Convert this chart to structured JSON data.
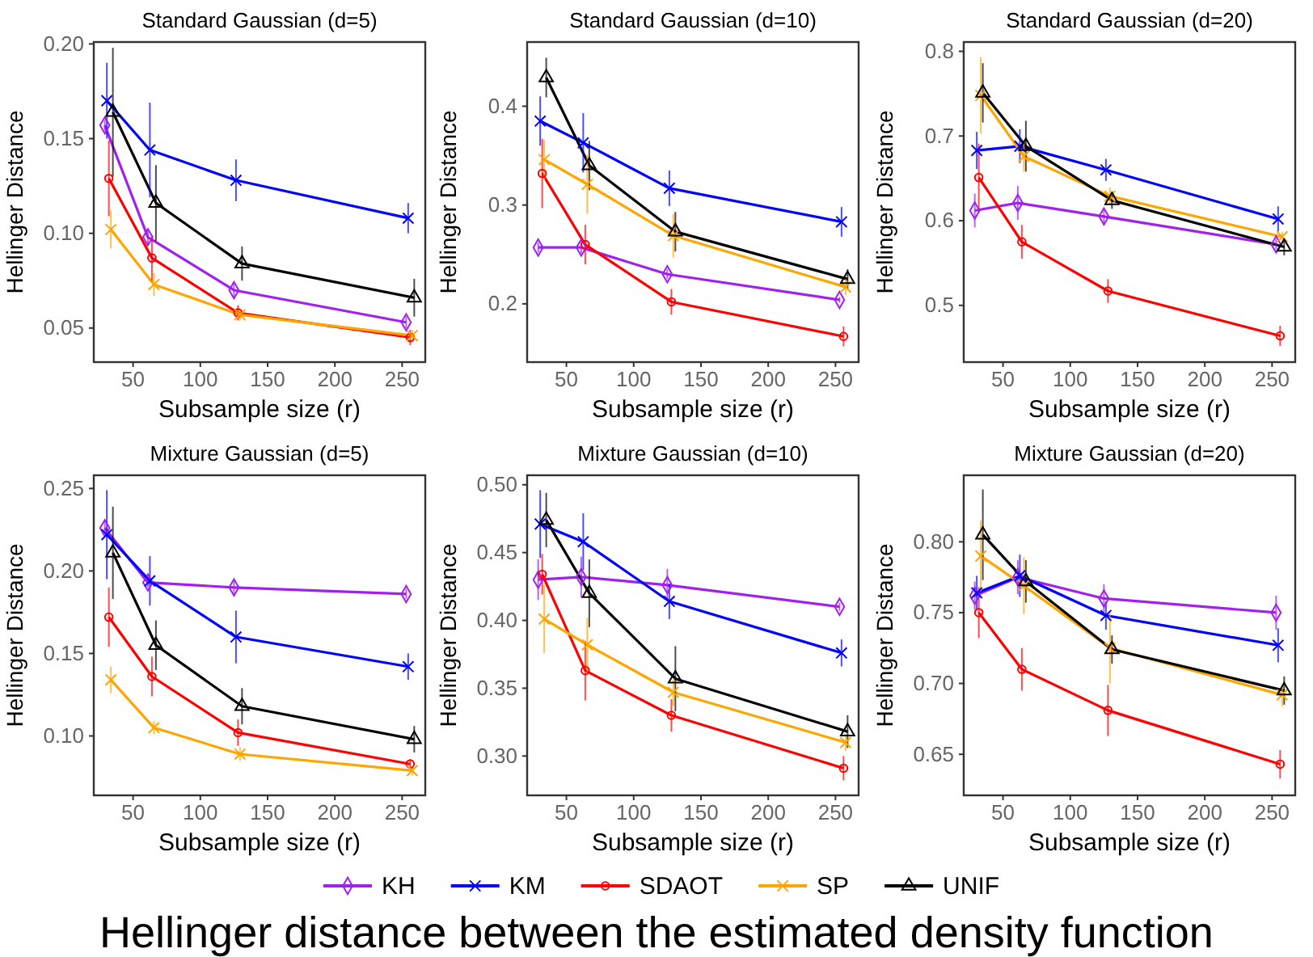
{
  "chart_data": [
    {
      "type": "line",
      "title": "Standard Gaussian (d=5)",
      "xlabel": "Subsample size (r)",
      "ylabel": "Hellinger Distance",
      "xlim": [
        20.8,
        267.2
      ],
      "xticks": [
        50,
        100,
        150,
        200,
        250
      ],
      "ylim": [
        0.032,
        0.201
      ],
      "yticks": [
        {
          "value": 0.05,
          "label": "0.05"
        },
        {
          "value": 0.1,
          "label": "0.10"
        },
        {
          "value": 0.15,
          "label": "0.15"
        },
        {
          "value": 0.2,
          "label": "0.20"
        }
      ],
      "grid": false,
      "legend": "bottom",
      "annotations": [
        "Hellinger distance between the estimated density function"
      ],
      "series": [
        {
          "name": "KH",
          "color": "#a020f0",
          "marker": "diamond",
          "x": [
            29,
            61,
            125,
            253
          ],
          "values": [
            0.157,
            0.098,
            0.07,
            0.053
          ],
          "errors": [
            0.003,
            0.004,
            0.004,
            0.003
          ]
        },
        {
          "name": "KM",
          "color": "#0000ff",
          "marker": "cross",
          "x": [
            30.5,
            62.5,
            126.5,
            254.5
          ],
          "values": [
            0.17,
            0.144,
            0.128,
            0.108
          ],
          "errors": [
            0.02,
            0.025,
            0.011,
            0.008
          ]
        },
        {
          "name": "SDAOT",
          "color": "#ff0000",
          "marker": "circle",
          "x": [
            32,
            64,
            128,
            256
          ],
          "values": [
            0.129,
            0.087,
            0.058,
            0.045
          ],
          "errors": [
            0.02,
            0.012,
            0.004,
            0.004
          ]
        },
        {
          "name": "SP",
          "color": "#ffa500",
          "marker": "cross",
          "x": [
            33.5,
            65.5,
            129.5,
            257.5
          ],
          "values": [
            0.102,
            0.073,
            0.057,
            0.046
          ],
          "errors": [
            0.01,
            0.006,
            0.003,
            0.003
          ]
        },
        {
          "name": "UNIF",
          "color": "#000000",
          "marker": "triangle",
          "x": [
            35,
            67,
            131,
            259
          ],
          "values": [
            0.164,
            0.116,
            0.084,
            0.066
          ],
          "errors": [
            0.034,
            0.02,
            0.009,
            0.01
          ]
        }
      ]
    },
    {
      "type": "line",
      "title": "Standard Gaussian (d=10)",
      "xlabel": "Subsample size (r)",
      "ylabel": "Hellinger Distance",
      "xlim": [
        20.8,
        267.2
      ],
      "xticks": [
        50,
        100,
        150,
        200,
        250
      ],
      "ylim": [
        0.141,
        0.465
      ],
      "yticks": [
        0.2,
        0.3,
        0.4
      ],
      "grid": false,
      "legend": "bottom",
      "series": [
        {
          "name": "KH",
          "color": "#a020f0",
          "marker": "diamond",
          "x": [
            29,
            61,
            125,
            253
          ],
          "values": [
            0.257,
            0.257,
            0.23,
            0.204
          ],
          "errors": [
            0.005,
            0.006,
            0.005,
            0.003
          ]
        },
        {
          "name": "KM",
          "color": "#0000ff",
          "marker": "cross",
          "x": [
            30.5,
            62.5,
            126.5,
            254.5
          ],
          "values": [
            0.385,
            0.363,
            0.317,
            0.283
          ],
          "errors": [
            0.025,
            0.03,
            0.018,
            0.015
          ]
        },
        {
          "name": "SDAOT",
          "color": "#ff0000",
          "marker": "circle",
          "x": [
            32,
            64,
            128,
            256
          ],
          "values": [
            0.332,
            0.26,
            0.202,
            0.167
          ],
          "errors": [
            0.035,
            0.02,
            0.013,
            0.01
          ]
        },
        {
          "name": "SP",
          "color": "#ffa500",
          "marker": "cross",
          "x": [
            33.5,
            65.5,
            129.5,
            257.5
          ],
          "values": [
            0.346,
            0.321,
            0.269,
            0.217
          ],
          "errors": [
            0.02,
            0.03,
            0.022,
            0.008
          ]
        },
        {
          "name": "UNIF",
          "color": "#000000",
          "marker": "triangle",
          "x": [
            35,
            67,
            131,
            259
          ],
          "values": [
            0.429,
            0.34,
            0.273,
            0.225
          ],
          "errors": [
            0.02,
            0.025,
            0.02,
            0.01
          ]
        }
      ]
    },
    {
      "type": "line",
      "title": "Standard Gaussian (d=20)",
      "xlabel": "Subsample size (r)",
      "ylabel": "Hellinger Distance",
      "xlim": [
        20.8,
        267.2
      ],
      "xticks": [
        50,
        100,
        150,
        200,
        250
      ],
      "ylim": [
        0.433,
        0.811
      ],
      "yticks": [
        0.5,
        0.6,
        0.7,
        0.8
      ],
      "grid": false,
      "legend": "bottom",
      "series": [
        {
          "name": "KH",
          "color": "#a020f0",
          "marker": "diamond",
          "x": [
            29,
            61,
            125,
            253
          ],
          "values": [
            0.612,
            0.621,
            0.605,
            0.572
          ],
          "errors": [
            0.02,
            0.02,
            0.01,
            0.006
          ]
        },
        {
          "name": "KM",
          "color": "#0000ff",
          "marker": "cross",
          "x": [
            30.5,
            62.5,
            126.5,
            254.5
          ],
          "values": [
            0.683,
            0.688,
            0.66,
            0.602
          ],
          "errors": [
            0.022,
            0.02,
            0.013,
            0.015
          ]
        },
        {
          "name": "SDAOT",
          "color": "#ff0000",
          "marker": "circle",
          "x": [
            32,
            64,
            128,
            256
          ],
          "values": [
            0.651,
            0.575,
            0.517,
            0.464
          ],
          "errors": [
            0.04,
            0.02,
            0.014,
            0.012
          ]
        },
        {
          "name": "SP",
          "color": "#ffa500",
          "marker": "cross",
          "x": [
            33.5,
            65.5,
            129.5,
            257.5
          ],
          "values": [
            0.748,
            0.676,
            0.629,
            0.581
          ],
          "errors": [
            0.045,
            0.018,
            0.01,
            0.006
          ]
        },
        {
          "name": "UNIF",
          "color": "#000000",
          "marker": "triangle",
          "x": [
            35,
            67,
            131,
            259
          ],
          "values": [
            0.751,
            0.688,
            0.624,
            0.569
          ],
          "errors": [
            0.035,
            0.03,
            0.01,
            0.01
          ]
        }
      ]
    },
    {
      "type": "line",
      "title": "Mixture Gaussian (d=5)",
      "xlabel": "Subsample size (r)",
      "ylabel": "Hellinger Distance",
      "xlim": [
        20.8,
        267.2
      ],
      "xticks": [
        50,
        100,
        150,
        200,
        250
      ],
      "ylim": [
        0.064,
        0.258
      ],
      "yticks": [
        {
          "value": 0.1,
          "label": "0.10"
        },
        {
          "value": 0.15,
          "label": "0.15"
        },
        {
          "value": 0.2,
          "label": "0.20"
        },
        {
          "value": 0.25,
          "label": "0.25"
        }
      ],
      "grid": false,
      "legend": "bottom",
      "series": [
        {
          "name": "KH",
          "color": "#a020f0",
          "marker": "diamond",
          "x": [
            29,
            61,
            125,
            253
          ],
          "values": [
            0.226,
            0.193,
            0.19,
            0.186
          ],
          "errors": [
            0.004,
            0.003,
            0.004,
            0.003
          ]
        },
        {
          "name": "KM",
          "color": "#0000ff",
          "marker": "cross",
          "x": [
            30.5,
            62.5,
            126.5,
            254.5
          ],
          "values": [
            0.222,
            0.194,
            0.16,
            0.142
          ],
          "errors": [
            0.027,
            0.015,
            0.016,
            0.008
          ]
        },
        {
          "name": "SDAOT",
          "color": "#ff0000",
          "marker": "circle",
          "x": [
            32,
            64,
            128,
            256
          ],
          "values": [
            0.172,
            0.136,
            0.102,
            0.083
          ],
          "errors": [
            0.018,
            0.012,
            0.008,
            0.003
          ]
        },
        {
          "name": "SP",
          "color": "#ffa500",
          "marker": "cross",
          "x": [
            33.5,
            65.5,
            129.5,
            257.5
          ],
          "values": [
            0.134,
            0.105,
            0.089,
            0.079
          ],
          "errors": [
            0.008,
            0.004,
            0.004,
            0.003
          ]
        },
        {
          "name": "UNIF",
          "color": "#000000",
          "marker": "triangle",
          "x": [
            35,
            67,
            131,
            259
          ],
          "values": [
            0.211,
            0.155,
            0.118,
            0.098
          ],
          "errors": [
            0.028,
            0.015,
            0.011,
            0.008
          ]
        }
      ]
    },
    {
      "type": "line",
      "title": "Mixture Gaussian (d=10)",
      "xlabel": "Subsample size (r)",
      "ylabel": "Hellinger Distance",
      "xlim": [
        20.8,
        267.2
      ],
      "xticks": [
        50,
        100,
        150,
        200,
        250
      ],
      "ylim": [
        0.271,
        0.507
      ],
      "yticks": [
        {
          "value": 0.3,
          "label": "0.30"
        },
        {
          "value": 0.35,
          "label": "0.35"
        },
        {
          "value": 0.4,
          "label": "0.40"
        },
        {
          "value": 0.45,
          "label": "0.45"
        },
        {
          "value": 0.5,
          "label": "0.50"
        }
      ],
      "grid": false,
      "legend": "bottom",
      "series": [
        {
          "name": "KH",
          "color": "#a020f0",
          "marker": "diamond",
          "x": [
            29,
            61,
            125,
            253
          ],
          "values": [
            0.43,
            0.432,
            0.426,
            0.41
          ],
          "errors": [
            0.015,
            0.015,
            0.012,
            0.003
          ]
        },
        {
          "name": "KM",
          "color": "#0000ff",
          "marker": "cross",
          "x": [
            30.5,
            62.5,
            126.5,
            254.5
          ],
          "values": [
            0.471,
            0.458,
            0.414,
            0.376
          ],
          "errors": [
            0.025,
            0.021,
            0.013,
            0.01
          ]
        },
        {
          "name": "SDAOT",
          "color": "#ff0000",
          "marker": "circle",
          "x": [
            32,
            64,
            128,
            256
          ],
          "values": [
            0.434,
            0.363,
            0.33,
            0.291
          ],
          "errors": [
            0.015,
            0.022,
            0.012,
            0.009
          ]
        },
        {
          "name": "SP",
          "color": "#ffa500",
          "marker": "cross",
          "x": [
            33.5,
            65.5,
            129.5,
            257.5
          ],
          "values": [
            0.401,
            0.382,
            0.347,
            0.31
          ],
          "errors": [
            0.025,
            0.02,
            0.01,
            0.006
          ]
        },
        {
          "name": "UNIF",
          "color": "#000000",
          "marker": "triangle",
          "x": [
            35,
            67,
            131,
            259
          ],
          "values": [
            0.474,
            0.42,
            0.357,
            0.318
          ],
          "errors": [
            0.02,
            0.025,
            0.024,
            0.012
          ]
        }
      ]
    },
    {
      "type": "line",
      "title": "Mixture Gaussian (d=20)",
      "xlabel": "Subsample size (r)",
      "ylabel": "Hellinger Distance",
      "xlim": [
        20.8,
        267.2
      ],
      "xticks": [
        50,
        100,
        150,
        200,
        250
      ],
      "ylim": [
        0.621,
        0.847
      ],
      "yticks": [
        {
          "value": 0.65,
          "label": "0.65"
        },
        {
          "value": 0.7,
          "label": "0.70"
        },
        {
          "value": 0.75,
          "label": "0.75"
        },
        {
          "value": 0.8,
          "label": "0.80"
        }
      ],
      "grid": false,
      "legend": "bottom",
      "series": [
        {
          "name": "KH",
          "color": "#a020f0",
          "marker": "diamond",
          "x": [
            29,
            61,
            125,
            253
          ],
          "values": [
            0.762,
            0.775,
            0.76,
            0.75
          ],
          "errors": [
            0.01,
            0.012,
            0.01,
            0.012
          ]
        },
        {
          "name": "KM",
          "color": "#0000ff",
          "marker": "cross",
          "x": [
            30.5,
            62.5,
            126.5,
            254.5
          ],
          "values": [
            0.764,
            0.776,
            0.748,
            0.727
          ],
          "errors": [
            0.012,
            0.015,
            0.01,
            0.012
          ]
        },
        {
          "name": "SDAOT",
          "color": "#ff0000",
          "marker": "circle",
          "x": [
            32,
            64,
            128,
            256
          ],
          "values": [
            0.75,
            0.71,
            0.681,
            0.643
          ],
          "errors": [
            0.018,
            0.015,
            0.018,
            0.01
          ]
        },
        {
          "name": "SP",
          "color": "#ffa500",
          "marker": "cross",
          "x": [
            33.5,
            65.5,
            129.5,
            257.5
          ],
          "values": [
            0.79,
            0.769,
            0.725,
            0.692
          ],
          "errors": [
            0.025,
            0.02,
            0.025,
            0.008
          ]
        },
        {
          "name": "UNIF",
          "color": "#000000",
          "marker": "triangle",
          "x": [
            35,
            67,
            131,
            259
          ],
          "values": [
            0.805,
            0.772,
            0.724,
            0.695
          ],
          "errors": [
            0.032,
            0.015,
            0.01,
            0.01
          ]
        }
      ]
    }
  ]
}
